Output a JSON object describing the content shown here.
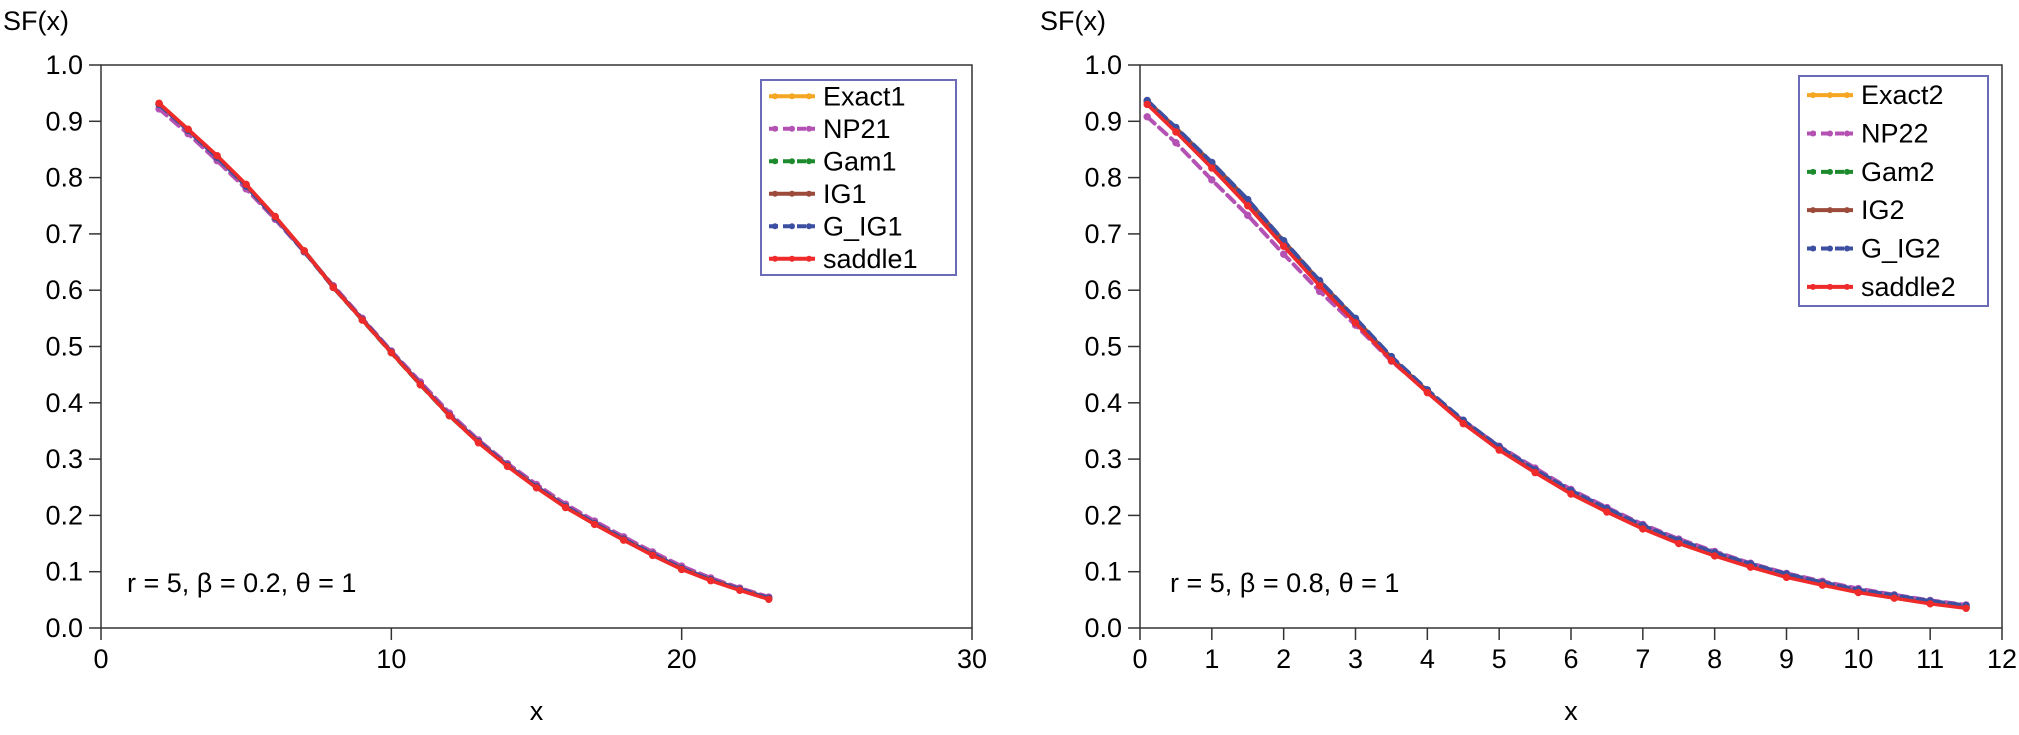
{
  "chart_data": [
    {
      "type": "line",
      "ylabel": "SF(x)",
      "xlabel": "x",
      "xlim": [
        0,
        30
      ],
      "ylim": [
        0,
        1
      ],
      "xticks": [
        0,
        10,
        20,
        30
      ],
      "yticks": [
        0.0,
        0.1,
        0.2,
        0.3,
        0.4,
        0.5,
        0.6,
        0.7,
        0.8,
        0.9,
        1.0
      ],
      "xtick_labels": [
        "0",
        "10",
        "20",
        "30"
      ],
      "ytick_labels": [
        "0.0",
        "0.1",
        "0.2",
        "0.3",
        "0.4",
        "0.5",
        "0.6",
        "0.7",
        "0.8",
        "0.9",
        "1.0"
      ],
      "grid": false,
      "legend_position": "top-right",
      "annotation": "r = 5, β = 0.2, θ = 1",
      "x": [
        2,
        3,
        4,
        5,
        6,
        7,
        8,
        9,
        10,
        11,
        12,
        13,
        14,
        15,
        16,
        17,
        18,
        19,
        20,
        21,
        22,
        23
      ],
      "series": [
        {
          "name": "Exact1",
          "color": "#f5a623",
          "dash": "solid",
          "values": [
            0.932,
            0.885,
            0.838,
            0.787,
            0.73,
            0.67,
            0.605,
            0.548,
            0.49,
            0.433,
            0.378,
            0.33,
            0.288,
            0.25,
            0.215,
            0.185,
            0.157,
            0.13,
            0.105,
            0.085,
            0.068,
            0.052
          ]
        },
        {
          "name": "NP21",
          "color": "#b452b4",
          "dash": "dashed",
          "values": [
            0.922,
            0.878,
            0.83,
            0.78,
            0.726,
            0.668,
            0.608,
            0.55,
            0.492,
            0.437,
            0.382,
            0.334,
            0.292,
            0.255,
            0.22,
            0.19,
            0.162,
            0.135,
            0.11,
            0.089,
            0.071,
            0.055
          ]
        },
        {
          "name": "Gam1",
          "color": "#1e8a2e",
          "dash": "dashed",
          "values": [
            0.93,
            0.884,
            0.836,
            0.785,
            0.729,
            0.669,
            0.605,
            0.547,
            0.489,
            0.432,
            0.377,
            0.33,
            0.288,
            0.25,
            0.215,
            0.185,
            0.157,
            0.13,
            0.105,
            0.085,
            0.068,
            0.052
          ]
        },
        {
          "name": "IG1",
          "color": "#9c4a3a",
          "dash": "solid",
          "values": [
            0.931,
            0.885,
            0.837,
            0.786,
            0.73,
            0.67,
            0.606,
            0.548,
            0.49,
            0.433,
            0.378,
            0.331,
            0.289,
            0.251,
            0.216,
            0.186,
            0.158,
            0.131,
            0.106,
            0.086,
            0.069,
            0.053
          ]
        },
        {
          "name": "G_IG1",
          "color": "#3d4fa0",
          "dash": "dashed",
          "values": [
            0.93,
            0.884,
            0.836,
            0.785,
            0.729,
            0.669,
            0.605,
            0.548,
            0.49,
            0.433,
            0.378,
            0.331,
            0.289,
            0.251,
            0.216,
            0.186,
            0.158,
            0.131,
            0.106,
            0.086,
            0.069,
            0.053
          ]
        },
        {
          "name": "saddle1",
          "color": "#ee2a2a",
          "dash": "solid",
          "values": [
            0.932,
            0.886,
            0.839,
            0.788,
            0.731,
            0.67,
            0.605,
            0.547,
            0.489,
            0.432,
            0.377,
            0.329,
            0.287,
            0.249,
            0.214,
            0.184,
            0.156,
            0.129,
            0.104,
            0.084,
            0.067,
            0.051
          ]
        }
      ]
    },
    {
      "type": "line",
      "ylabel": "SF(x)",
      "xlabel": "x",
      "xlim": [
        0,
        12
      ],
      "ylim": [
        0,
        1
      ],
      "xticks": [
        0,
        1,
        2,
        3,
        4,
        5,
        6,
        7,
        8,
        9,
        10,
        11,
        12
      ],
      "yticks": [
        0.0,
        0.1,
        0.2,
        0.3,
        0.4,
        0.5,
        0.6,
        0.7,
        0.8,
        0.9,
        1.0
      ],
      "xtick_labels": [
        "0",
        "1",
        "2",
        "3",
        "4",
        "5",
        "6",
        "7",
        "8",
        "9",
        "10",
        "11",
        "12"
      ],
      "ytick_labels": [
        "0.0",
        "0.1",
        "0.2",
        "0.3",
        "0.4",
        "0.5",
        "0.6",
        "0.7",
        "0.8",
        "0.9",
        "1.0"
      ],
      "grid": false,
      "legend_position": "top-right",
      "annotation": "r = 5, β = 0.8, θ = 1",
      "x": [
        0.1,
        0.5,
        1.0,
        1.5,
        2.0,
        2.5,
        3.0,
        3.5,
        4.0,
        4.5,
        5.0,
        5.5,
        6.0,
        6.5,
        7.0,
        7.5,
        8.0,
        8.5,
        9.0,
        9.5,
        10.0,
        10.5,
        11.0,
        11.5
      ],
      "series": [
        {
          "name": "Exact2",
          "color": "#f5a623",
          "dash": "solid",
          "values": [
            0.935,
            0.885,
            0.82,
            0.753,
            0.68,
            0.61,
            0.545,
            0.477,
            0.42,
            0.365,
            0.318,
            0.278,
            0.24,
            0.208,
            0.178,
            0.152,
            0.13,
            0.11,
            0.092,
            0.078,
            0.065,
            0.055,
            0.045,
            0.037
          ]
        },
        {
          "name": "NP22",
          "color": "#b452b4",
          "dash": "dashed",
          "values": [
            0.908,
            0.862,
            0.796,
            0.733,
            0.664,
            0.598,
            0.538,
            0.474,
            0.42,
            0.368,
            0.323,
            0.284,
            0.246,
            0.214,
            0.184,
            0.158,
            0.136,
            0.115,
            0.097,
            0.083,
            0.07,
            0.059,
            0.049,
            0.041
          ]
        },
        {
          "name": "Gam2",
          "color": "#1e8a2e",
          "dash": "dashed",
          "values": [
            0.936,
            0.887,
            0.824,
            0.757,
            0.684,
            0.614,
            0.548,
            0.479,
            0.421,
            0.366,
            0.318,
            0.277,
            0.239,
            0.207,
            0.177,
            0.151,
            0.129,
            0.109,
            0.091,
            0.077,
            0.064,
            0.054,
            0.044,
            0.036
          ]
        },
        {
          "name": "IG2",
          "color": "#9c4a3a",
          "dash": "solid",
          "values": [
            0.936,
            0.888,
            0.826,
            0.76,
            0.687,
            0.616,
            0.549,
            0.48,
            0.421,
            0.366,
            0.318,
            0.277,
            0.239,
            0.207,
            0.177,
            0.151,
            0.129,
            0.109,
            0.091,
            0.077,
            0.064,
            0.054,
            0.044,
            0.036
          ]
        },
        {
          "name": "G_IG2",
          "color": "#3d4fa0",
          "dash": "dashed",
          "values": [
            0.937,
            0.889,
            0.827,
            0.761,
            0.688,
            0.617,
            0.55,
            0.482,
            0.423,
            0.369,
            0.322,
            0.281,
            0.244,
            0.212,
            0.182,
            0.156,
            0.134,
            0.114,
            0.096,
            0.081,
            0.068,
            0.058,
            0.048,
            0.04
          ]
        },
        {
          "name": "saddle2",
          "color": "#ee2a2a",
          "dash": "solid",
          "values": [
            0.93,
            0.881,
            0.817,
            0.75,
            0.678,
            0.608,
            0.542,
            0.475,
            0.418,
            0.363,
            0.316,
            0.276,
            0.238,
            0.206,
            0.176,
            0.15,
            0.128,
            0.108,
            0.09,
            0.076,
            0.063,
            0.053,
            0.043,
            0.035
          ]
        }
      ]
    }
  ]
}
